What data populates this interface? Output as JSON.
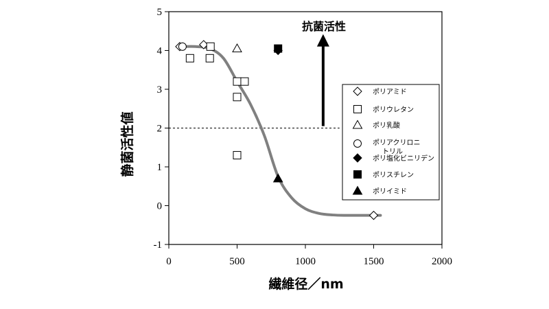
{
  "chart_data": {
    "type": "scatter",
    "xlabel": "繊維径／nm",
    "ylabel": "静菌活性値",
    "xlim": [
      0,
      2000
    ],
    "ylim": [
      -1,
      5
    ],
    "xticks": [
      0,
      500,
      1000,
      1500,
      2000
    ],
    "yticks": [
      -1,
      0,
      1,
      2,
      3,
      4,
      5
    ],
    "grid": false,
    "legend_position": "right",
    "threshold": {
      "y": 2,
      "style": "dashed"
    },
    "annotation": {
      "text": "抗菌活性",
      "arrow": "up",
      "x": 1130,
      "y_from": 2.05,
      "y_to": 4.35
    },
    "series": [
      {
        "name": "ポリアミド",
        "marker": "diamond-open",
        "points": [
          [
            80,
            4.1
          ],
          [
            255,
            4.15
          ],
          [
            1500,
            -0.25
          ]
        ]
      },
      {
        "name": "ポリウレタン",
        "marker": "square-open",
        "points": [
          [
            155,
            3.8
          ],
          [
            300,
            3.8
          ],
          [
            305,
            4.1
          ],
          [
            500,
            3.2
          ],
          [
            500,
            2.8
          ],
          [
            500,
            1.3
          ],
          [
            555,
            3.2
          ]
        ]
      },
      {
        "name": "ポリ乳酸",
        "marker": "triangle-open",
        "points": [
          [
            500,
            4.05
          ]
        ]
      },
      {
        "name": "ポリアクリロニトリル",
        "label_lines": [
          "ポリアクリロニ",
          "トリル"
        ],
        "marker": "circle-open",
        "points": [
          [
            100,
            4.1
          ]
        ]
      },
      {
        "name": "ポリ塩化ビニリデン",
        "marker": "diamond-filled",
        "points": [
          [
            800,
            4.0
          ]
        ]
      },
      {
        "name": "ポリスチレン",
        "marker": "square-filled",
        "points": [
          [
            800,
            4.05
          ]
        ]
      },
      {
        "name": "ポリイミド",
        "marker": "triangle-filled",
        "points": [
          [
            800,
            0.7
          ]
        ]
      }
    ],
    "trend_curve": {
      "color": "#808080",
      "points": [
        [
          100,
          4.1
        ],
        [
          200,
          4.1
        ],
        [
          300,
          4.05
        ],
        [
          400,
          3.8
        ],
        [
          500,
          3.2
        ],
        [
          600,
          2.6
        ],
        [
          700,
          1.8
        ],
        [
          800,
          0.75
        ],
        [
          900,
          0.2
        ],
        [
          1000,
          -0.08
        ],
        [
          1100,
          -0.2
        ],
        [
          1200,
          -0.24
        ],
        [
          1300,
          -0.25
        ],
        [
          1400,
          -0.25
        ],
        [
          1550,
          -0.25
        ]
      ]
    }
  }
}
